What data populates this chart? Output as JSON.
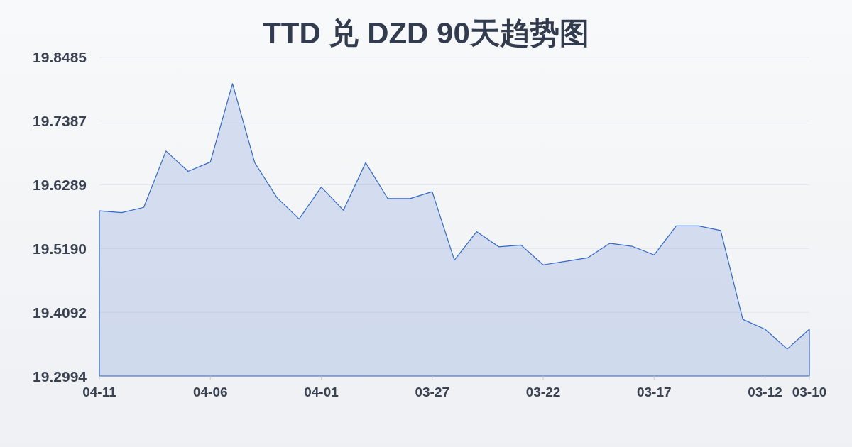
{
  "chart_data": {
    "type": "area",
    "title": "TTD 兑 DZD 90天趋势图",
    "categories": [
      "04-11",
      null,
      null,
      null,
      null,
      "04-06",
      null,
      null,
      null,
      null,
      "04-01",
      null,
      null,
      null,
      null,
      "03-27",
      null,
      null,
      null,
      null,
      "03-22",
      null,
      null,
      null,
      null,
      "03-17",
      null,
      null,
      null,
      null,
      "03-12",
      null,
      "03-10"
    ],
    "series": [
      {
        "color": "#3366cc",
        "values": [
          19.584,
          19.581,
          19.59,
          19.687,
          19.652,
          19.668,
          19.803,
          19.667,
          19.607,
          19.57,
          19.625,
          19.585,
          19.667,
          19.605,
          19.605,
          19.617,
          19.499,
          19.548,
          19.522,
          19.525,
          19.491,
          19.497,
          19.503,
          19.528,
          19.523,
          19.508,
          19.558,
          19.558,
          19.55,
          19.397,
          19.38,
          19.346,
          19.38
        ]
      }
    ],
    "ylim": [
      19.2994,
      19.8485
    ],
    "yticks": [
      19.2994,
      19.4092,
      {
        "value": 19.519,
        "label": "19.5190"
      },
      19.6289,
      19.7387,
      19.8485
    ],
    "grid": "y"
  }
}
